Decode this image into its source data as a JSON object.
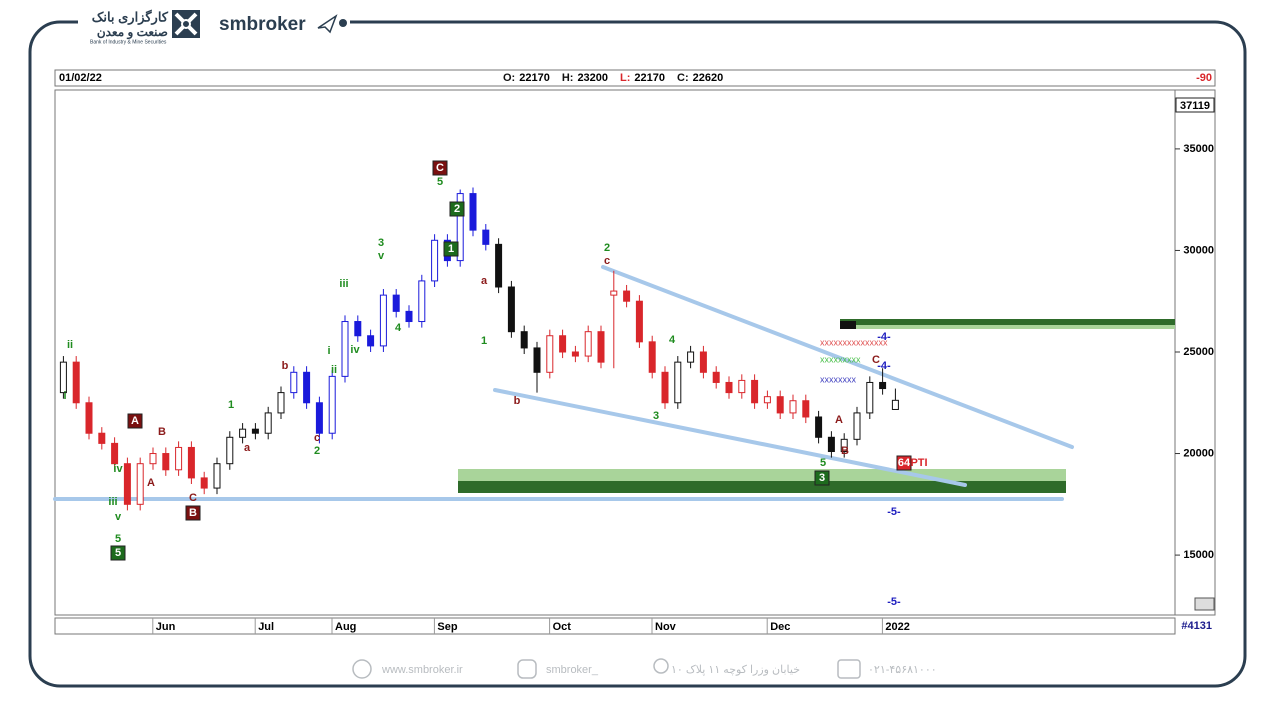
{
  "header": {
    "brand": "smbroker",
    "bank_fa_1": "کارگزاری بانک",
    "bank_fa_2": "صنعت و معدن",
    "bank_en": "Bank of Industry & Mine Securities"
  },
  "footer": {
    "website": "www.smbroker.ir",
    "instagram": "smbroker_",
    "address": "خیابان وزرا کوچه ۱۱ پلاک ۱۰",
    "phone": "۰۲۱-۴۵۶۸۱۰۰۰"
  },
  "chart_data": {
    "type": "candlestick",
    "date": "01/02/22",
    "ohlc": [
      {
        "label": "O:",
        "value": 22170
      },
      {
        "label": "H:",
        "value": 23200
      },
      {
        "label": "L:",
        "value": 22170
      },
      {
        "label": "C:",
        "value": 22620
      }
    ],
    "indicator": "-90",
    "last_price_box": "37119",
    "bar_count": "#4131",
    "categories": [
      null,
      null,
      null,
      null,
      null,
      null,
      null,
      null,
      "Jun",
      null,
      null,
      null,
      null,
      null,
      null,
      null,
      "Jul",
      null,
      null,
      null,
      null,
      null,
      "Aug",
      null,
      null,
      null,
      null,
      null,
      null,
      null,
      "Sep",
      null,
      null,
      null,
      null,
      null,
      null,
      null,
      null,
      "Oct",
      null,
      null,
      null,
      null,
      null,
      null,
      null,
      "Nov",
      null,
      null,
      null,
      null,
      null,
      null,
      null,
      null,
      "Dec",
      null,
      null,
      null,
      null,
      null,
      null,
      null,
      null,
      "2022"
    ],
    "open": [
      23000,
      24500,
      22500,
      21000,
      20500,
      19500,
      17500,
      19500,
      20000,
      19200,
      20300,
      18800,
      18300,
      19500,
      20800,
      21200,
      21000,
      22000,
      23000,
      24000,
      22500,
      21000,
      23800,
      26500,
      25800,
      25300,
      27800,
      27000,
      26500,
      28500,
      30500,
      29500,
      32800,
      31000,
      30300,
      28200,
      26000,
      25200,
      24000,
      25800,
      25000,
      24800,
      26000,
      27800,
      28000,
      27500,
      25500,
      24000,
      22500,
      24500,
      25000,
      24000,
      23500,
      23000,
      23600,
      22500,
      22800,
      22000,
      22600,
      21800,
      20800,
      20100,
      20700,
      22000,
      23500,
      22170
    ],
    "high": [
      24800,
      24800,
      22800,
      21300,
      20800,
      19800,
      19800,
      20300,
      20300,
      20600,
      20600,
      19100,
      19800,
      21100,
      21500,
      21500,
      22300,
      23300,
      24300,
      24300,
      22800,
      24100,
      26800,
      26800,
      26100,
      28100,
      28100,
      27300,
      28800,
      30800,
      30800,
      33000,
      33100,
      31300,
      30600,
      28500,
      26300,
      25500,
      26100,
      26100,
      25300,
      26300,
      26300,
      29000,
      28300,
      27800,
      25800,
      24300,
      24800,
      25300,
      25300,
      24300,
      23800,
      23900,
      23900,
      23100,
      23100,
      22900,
      22900,
      22100,
      21100,
      21000,
      22300,
      23800,
      24200,
      23200
    ],
    "low": [
      22700,
      22200,
      20700,
      20200,
      19200,
      17200,
      17200,
      19200,
      18900,
      18900,
      18500,
      18000,
      18000,
      19200,
      20500,
      20700,
      20700,
      21700,
      22700,
      22200,
      20500,
      20700,
      23500,
      25500,
      25000,
      25000,
      26700,
      26200,
      26200,
      28200,
      29200,
      29200,
      30700,
      30000,
      27900,
      25700,
      24900,
      23000,
      23700,
      24700,
      24500,
      24500,
      24200,
      24200,
      27200,
      25200,
      23700,
      22200,
      22200,
      24200,
      23700,
      23200,
      22700,
      22700,
      22200,
      22200,
      21700,
      21700,
      21500,
      20500,
      19800,
      19800,
      20400,
      21700,
      22900,
      22170
    ],
    "close": [
      24500,
      22500,
      21000,
      20500,
      19500,
      17500,
      19500,
      20000,
      19200,
      20300,
      18800,
      18300,
      19500,
      20800,
      21200,
      21000,
      22000,
      23000,
      24000,
      22500,
      21000,
      23800,
      26500,
      25800,
      25300,
      27800,
      27000,
      26500,
      28500,
      30500,
      29500,
      32800,
      31000,
      30300,
      28200,
      26000,
      25200,
      24000,
      25800,
      25000,
      24800,
      26000,
      24500,
      28000,
      27500,
      25500,
      24000,
      22500,
      24500,
      25000,
      24000,
      23500,
      23000,
      23600,
      22500,
      22800,
      22000,
      22600,
      21800,
      20800,
      20100,
      20700,
      22000,
      23500,
      23200,
      22620
    ],
    "colors": [
      "#111111",
      "#d9262b",
      "#d9262b",
      "#d9262b",
      "#d9262b",
      "#d9262b",
      "#d9262b",
      "#d9262b",
      "#d9262b",
      "#d9262b",
      "#d9262b",
      "#d9262b",
      "#111111",
      "#111111",
      "#111111",
      "#111111",
      "#111111",
      "#111111",
      "#1a1adb",
      "#1a1adb",
      "#1a1adb",
      "#1a1adb",
      "#1a1adb",
      "#1a1adb",
      "#1a1adb",
      "#1a1adb",
      "#1a1adb",
      "#1a1adb",
      "#1a1adb",
      "#1a1adb",
      "#1a1adb",
      "#1a1adb",
      "#1a1adb",
      "#1a1adb",
      "#111111",
      "#111111",
      "#111111",
      "#111111",
      "#d9262b",
      "#d9262b",
      "#d9262b",
      "#d9262b",
      "#d9262b",
      "#d9262b",
      "#d9262b",
      "#d9262b",
      "#d9262b",
      "#d9262b",
      "#111111",
      "#111111",
      "#d9262b",
      "#d9262b",
      "#d9262b",
      "#d9262b",
      "#d9262b",
      "#d9262b",
      "#d9262b",
      "#d9262b",
      "#d9262b",
      "#111111",
      "#111111",
      "#111111",
      "#111111",
      "#111111",
      "#111111",
      "#111111"
    ],
    "ylim": [
      12050,
      37900
    ],
    "yticks": [
      15000,
      20000,
      25000,
      30000,
      35000
    ],
    "annotations": [
      {
        "text": "ii",
        "color": "#1f8c1f"
      },
      {
        "text": "i",
        "color": "#1f8c1f"
      },
      {
        "text": "A",
        "color": "#ffffff",
        "background": "#7a1010"
      },
      {
        "text": "B",
        "color": "#8b1a1a"
      },
      {
        "text": "A",
        "color": "#8b1a1a"
      },
      {
        "text": "iv",
        "color": "#1f8c1f"
      },
      {
        "text": "iii",
        "color": "#1f8c1f"
      },
      {
        "text": "v",
        "color": "#1f8c1f"
      },
      {
        "text": "5",
        "color": "#1f8c1f"
      },
      {
        "text": "5",
        "color": "#ffffff",
        "background": "#1d6b1d"
      },
      {
        "text": "C",
        "color": "#8b1a1a"
      },
      {
        "text": "B",
        "color": "#ffffff",
        "background": "#7a1010"
      },
      {
        "text": "1",
        "color": "#1f8c1f"
      },
      {
        "text": "a",
        "color": "#8b1a1a"
      },
      {
        "text": "b",
        "color": "#8b1a1a"
      },
      {
        "text": "c",
        "color": "#8b1a1a"
      },
      {
        "text": "2",
        "color": "#1f8c1f"
      },
      {
        "text": "i",
        "color": "#1f8c1f"
      },
      {
        "text": "ii",
        "color": "#1f8c1f"
      },
      {
        "text": "iii",
        "color": "#1f8c1f"
      },
      {
        "text": "iv",
        "color": "#1f8c1f"
      },
      {
        "text": "3",
        "color": "#1f8c1f"
      },
      {
        "text": "v",
        "color": "#1f8c1f"
      },
      {
        "text": "4",
        "color": "#1f8c1f"
      },
      {
        "text": "C",
        "color": "#ffffff",
        "background": "#7a1010"
      },
      {
        "text": "5",
        "color": "#1f8c1f"
      },
      {
        "text": "2",
        "color": "#ffffff",
        "background": "#1d6b1d"
      },
      {
        "text": "1",
        "color": "#ffffff",
        "background": "#1d6b1d"
      },
      {
        "text": "a",
        "color": "#8b1a1a"
      },
      {
        "text": "1",
        "color": "#1f8c1f"
      },
      {
        "text": "b",
        "color": "#8b1a1a"
      },
      {
        "text": "2",
        "color": "#1f8c1f"
      },
      {
        "text": "c",
        "color": "#8b1a1a"
      },
      {
        "text": "4",
        "color": "#1f8c1f"
      },
      {
        "text": "3",
        "color": "#1f8c1f"
      },
      {
        "text": "A",
        "color": "#8b1a1a"
      },
      {
        "text": "B",
        "color": "#8b1a1a"
      },
      {
        "text": "5",
        "color": "#1f8c1f"
      },
      {
        "text": "3",
        "color": "#ffffff",
        "background": "#1d6b1d"
      },
      {
        "text": "C",
        "color": "#8b1a1a"
      },
      {
        "text": "-4-",
        "color": "#2020c0"
      },
      {
        "text": "-4-",
        "color": "#2020c0"
      },
      {
        "text": "64",
        "color": "#ffffff",
        "background": "#d9262b"
      },
      {
        "text": "PTI",
        "color": "#d9262b"
      },
      {
        "text": "-5-",
        "color": "#2020c0"
      },
      {
        "text": "-5-",
        "color": "#2020c0"
      }
    ]
  }
}
